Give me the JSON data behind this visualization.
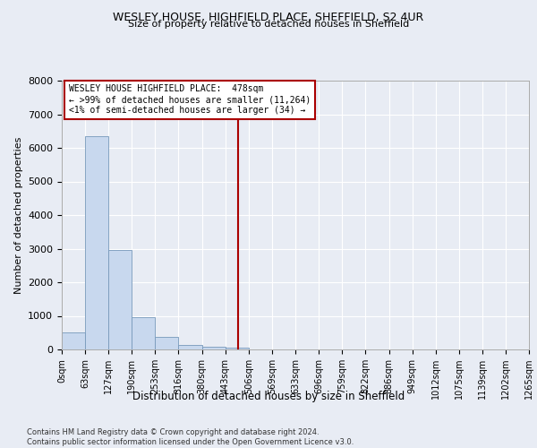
{
  "title1": "WESLEY HOUSE, HIGHFIELD PLACE, SHEFFIELD, S2 4UR",
  "title2": "Size of property relative to detached houses in Sheffield",
  "xlabel": "Distribution of detached houses by size in Sheffield",
  "ylabel": "Number of detached properties",
  "footnote": "Contains HM Land Registry data © Crown copyright and database right 2024.\nContains public sector information licensed under the Open Government Licence v3.0.",
  "bar_edges": [
    0,
    63,
    127,
    190,
    253,
    316,
    380,
    443,
    506,
    569,
    633,
    696,
    759,
    822,
    886,
    949,
    1012,
    1075,
    1139,
    1202,
    1265
  ],
  "bar_heights": [
    500,
    6350,
    2950,
    950,
    380,
    140,
    90,
    50,
    0,
    0,
    0,
    0,
    0,
    0,
    0,
    0,
    0,
    0,
    0,
    0
  ],
  "bar_color": "#c8d8ee",
  "bar_edge_color": "#7799bb",
  "vline_x": 478,
  "vline_color": "#aa0000",
  "annotation_title": "WESLEY HOUSE HIGHFIELD PLACE:  478sqm",
  "annotation_line1": "← >99% of detached houses are smaller (11,264)",
  "annotation_line2": "<1% of semi-detached houses are larger (34) →",
  "annotation_box_color": "#aa0000",
  "ylim": [
    0,
    8000
  ],
  "yticks": [
    0,
    1000,
    2000,
    3000,
    4000,
    5000,
    6000,
    7000,
    8000
  ],
  "background_color": "#e8ecf4",
  "plot_background": "#e8ecf4",
  "grid_color": "#ffffff",
  "tick_labels": [
    "0sqm",
    "63sqm",
    "127sqm",
    "190sqm",
    "253sqm",
    "316sqm",
    "380sqm",
    "443sqm",
    "506sqm",
    "569sqm",
    "633sqm",
    "696sqm",
    "759sqm",
    "822sqm",
    "886sqm",
    "949sqm",
    "1012sqm",
    "1075sqm",
    "1139sqm",
    "1202sqm",
    "1265sqm"
  ]
}
